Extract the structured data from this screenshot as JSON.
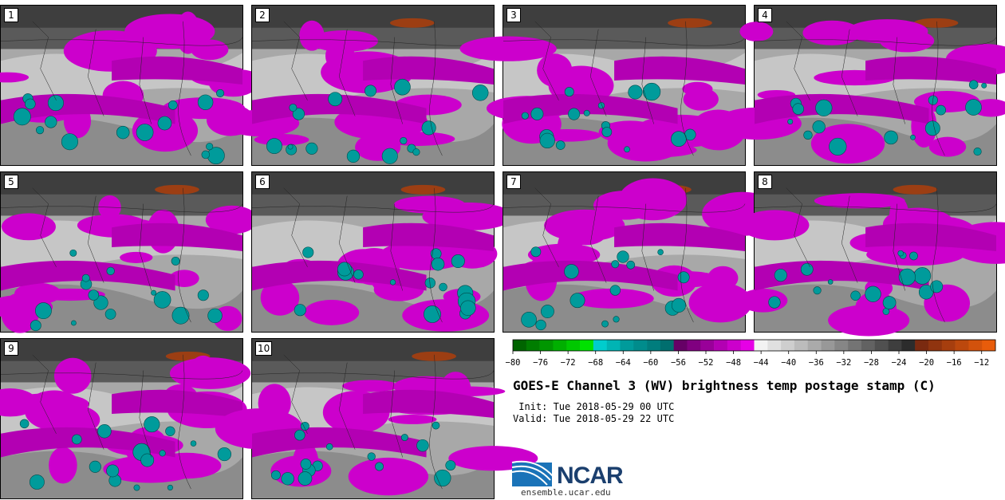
{
  "panels": [
    {
      "label": "1"
    },
    {
      "label": "2"
    },
    {
      "label": "3"
    },
    {
      "label": "4"
    },
    {
      "label": "5"
    },
    {
      "label": "6"
    },
    {
      "label": "7"
    },
    {
      "label": "8"
    },
    {
      "label": "9"
    },
    {
      "label": "10"
    }
  ],
  "chart_data": {
    "type": "heatmap",
    "title": "GOES-E Channel 3 (WV) brightness temp postage stamp (C)",
    "init_text": " Init: Tue 2018-05-29 00 UTC",
    "valid_text": "Valid: Tue 2018-05-29 22 UTC",
    "colorbar": {
      "ticks": [
        "−80",
        "−76",
        "−72",
        "−68",
        "−64",
        "−60",
        "−56",
        "−52",
        "−48",
        "−44",
        "−40",
        "−36",
        "−32",
        "−28",
        "−24",
        "−20",
        "−16",
        "−12"
      ],
      "range": [
        -80,
        -10
      ],
      "step": 2,
      "colors": [
        "#006400",
        "#007d00",
        "#009600",
        "#00af00",
        "#00c800",
        "#00e100",
        "#00cdcd",
        "#00b4b4",
        "#009b9b",
        "#008c8c",
        "#007d7d",
        "#006e6e",
        "#660066",
        "#800080",
        "#990099",
        "#b300b3",
        "#cc00cc",
        "#e600e6",
        "#f2f2f2",
        "#e0e0e0",
        "#cecece",
        "#bcbcbc",
        "#aaaaaa",
        "#989898",
        "#868686",
        "#747474",
        "#626262",
        "#505050",
        "#3e3e3e",
        "#2c2c2c",
        "#7a2a10",
        "#90340f",
        "#a63e0e",
        "#bc480d",
        "#d2520c",
        "#e85c0b"
      ]
    }
  },
  "logo": {
    "name": "NCAR",
    "url": "ensemble.ucar.edu"
  }
}
